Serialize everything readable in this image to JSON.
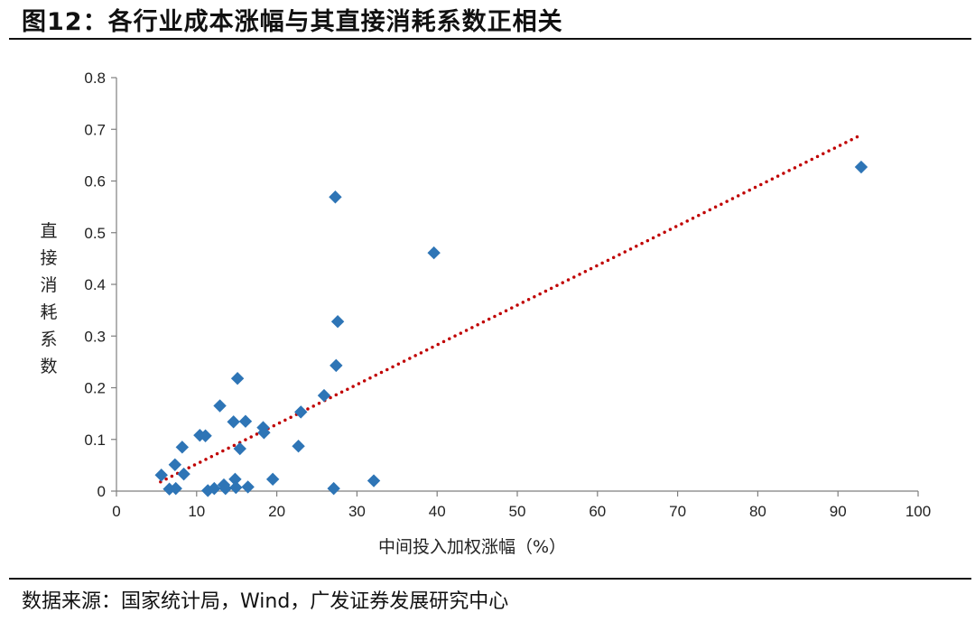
{
  "header": {
    "title": "图12：各行业成本涨幅与其直接消耗系数正相关"
  },
  "footer": {
    "source": "数据来源：国家统计局，Wind，广发证券发展研究中心"
  },
  "colors": {
    "marker": "#2e75b6",
    "trend": "#c00000",
    "axis": "#7f7f7f"
  },
  "chart_data": {
    "type": "scatter",
    "xlabel": "中间投入加权涨幅（%）",
    "ylabel": "直接消耗系数",
    "xlim": [
      0,
      100
    ],
    "ylim": [
      0,
      0.8
    ],
    "x_ticks": [
      0,
      10,
      20,
      30,
      40,
      50,
      60,
      70,
      80,
      90,
      100
    ],
    "y_ticks": [
      0,
      0.1,
      0.2,
      0.3,
      0.4,
      0.5,
      0.6,
      0.7,
      0.8
    ],
    "x_tick_labels": [
      "0",
      "10",
      "20",
      "30",
      "40",
      "50",
      "60",
      "70",
      "80",
      "90",
      "100"
    ],
    "y_tick_labels": [
      "0",
      "0.1",
      "0.2",
      "0.3",
      "0.4",
      "0.5",
      "0.6",
      "0.7",
      "0.8"
    ],
    "grid": false,
    "trendline": {
      "style": "dotted",
      "x": [
        5.5,
        93
      ],
      "y": [
        0.018,
        0.69
      ]
    },
    "points": [
      [
        5.6,
        0.031
      ],
      [
        6.6,
        0.004
      ],
      [
        7.3,
        0.051
      ],
      [
        7.4,
        0.005
      ],
      [
        8.2,
        0.085
      ],
      [
        8.4,
        0.033
      ],
      [
        10.4,
        0.108
      ],
      [
        11.1,
        0.107
      ],
      [
        11.4,
        0.001
      ],
      [
        12.2,
        0.005
      ],
      [
        12.9,
        0.165
      ],
      [
        13.4,
        0.012
      ],
      [
        13.6,
        0.005
      ],
      [
        14.6,
        0.134
      ],
      [
        14.8,
        0.023
      ],
      [
        14.9,
        0.007
      ],
      [
        15.1,
        0.218
      ],
      [
        15.4,
        0.082
      ],
      [
        16.1,
        0.135
      ],
      [
        16.4,
        0.008
      ],
      [
        18.3,
        0.123
      ],
      [
        18.4,
        0.113
      ],
      [
        19.5,
        0.023
      ],
      [
        22.7,
        0.087
      ],
      [
        23.0,
        0.153
      ],
      [
        25.9,
        0.185
      ],
      [
        27.1,
        0.005
      ],
      [
        27.3,
        0.569
      ],
      [
        27.4,
        0.243
      ],
      [
        27.6,
        0.328
      ],
      [
        32.1,
        0.02
      ],
      [
        39.6,
        0.461
      ],
      [
        92.9,
        0.627
      ]
    ]
  }
}
